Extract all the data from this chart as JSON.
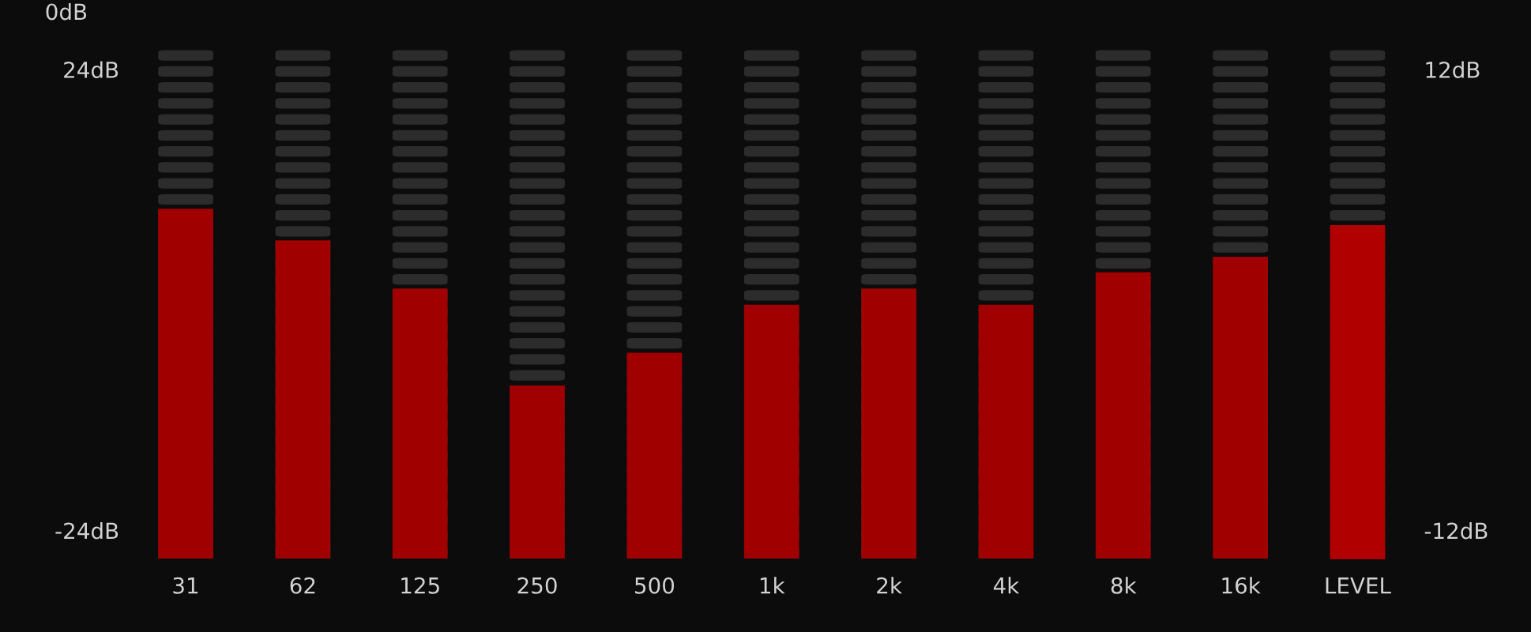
{
  "chart_data": {
    "type": "bar",
    "categories": [
      "31",
      "62",
      "125",
      "250",
      "500",
      "1k",
      "2k",
      "4k",
      "8k",
      "16k",
      "LEVEL"
    ],
    "series": [
      {
        "color": "#a00000",
        "base": [
          -27,
          -27,
          -27,
          -27,
          -27,
          -27,
          -27,
          -27,
          -27,
          -27,
          null
        ],
        "values": [
          36.5,
          33.2,
          28.2,
          18.1,
          21.5,
          26.5,
          28.2,
          26.5,
          29.9,
          31.5,
          null
        ]
      },
      {
        "color": "#b00000",
        "axis": "y2",
        "base": [
          null,
          null,
          null,
          null,
          null,
          null,
          null,
          null,
          null,
          null,
          -13.5
        ],
        "values": [
          null,
          null,
          null,
          null,
          null,
          null,
          null,
          null,
          null,
          null,
          17.4
        ]
      }
    ],
    "ylim": [
      -27,
      26.3
    ],
    "yticks": [
      {
        "value": -24,
        "label": "-24dB"
      },
      {
        "value": 24,
        "label": "24dB"
      }
    ],
    "y2lim": [
      -13.5,
      13.15
    ],
    "y2ticks": [
      {
        "value": -12,
        "label": "-12dB"
      },
      {
        "value": 12,
        "label": "12dB"
      }
    ],
    "ylabel": "0dB",
    "grid": false,
    "legend": false
  }
}
